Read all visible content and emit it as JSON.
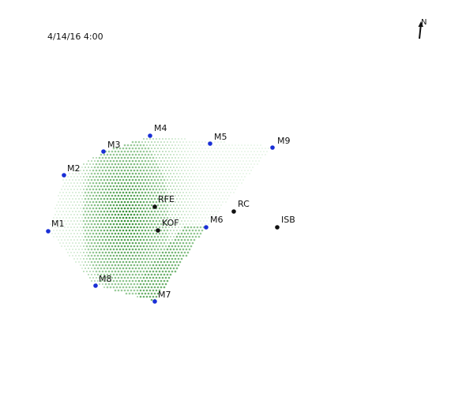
{
  "timestamp": "4/14/16 4:00",
  "north_label": "N",
  "colors": {
    "monitor": "#1a2fd6",
    "facility": "#111111",
    "plume_light": "#8fd08f",
    "plume_dark": "#2e8b2e"
  },
  "stations": [
    {
      "id": "M1",
      "label": "M1",
      "kind": "monitor"
    },
    {
      "id": "M2",
      "label": "M2",
      "kind": "monitor"
    },
    {
      "id": "M3",
      "label": "M3",
      "kind": "monitor"
    },
    {
      "id": "M4",
      "label": "M4",
      "kind": "monitor"
    },
    {
      "id": "M5",
      "label": "M5",
      "kind": "monitor"
    },
    {
      "id": "M6",
      "label": "M6",
      "kind": "monitor"
    },
    {
      "id": "M7",
      "label": "M7",
      "kind": "monitor"
    },
    {
      "id": "M8",
      "label": "M8",
      "kind": "monitor"
    },
    {
      "id": "M9",
      "label": "M9",
      "kind": "monitor"
    },
    {
      "id": "RFE",
      "label": "RFE",
      "kind": "facility"
    },
    {
      "id": "KOF",
      "label": "KOF",
      "kind": "facility"
    },
    {
      "id": "RC",
      "label": "RC",
      "kind": "facility"
    },
    {
      "id": "ISB",
      "label": "ISB",
      "kind": "facility"
    }
  ]
}
